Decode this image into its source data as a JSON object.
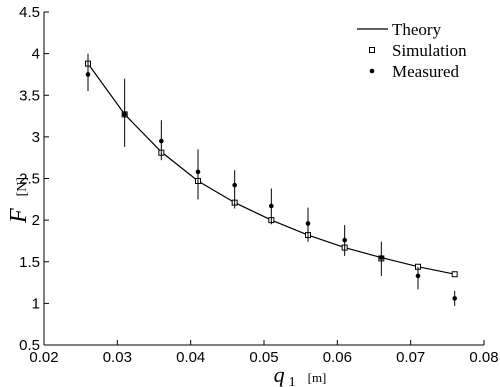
{
  "chart_data": {
    "type": "line",
    "xlim": [
      0.02,
      0.08
    ],
    "ylim": [
      0.5,
      4.5
    ],
    "x_ticks": [
      0.02,
      0.03,
      0.04,
      0.05,
      0.06,
      0.07,
      0.08
    ],
    "x_tick_labels": [
      "0.02",
      "0.03",
      "0.04",
      "0.05",
      "0.06",
      "0.07",
      "0.08"
    ],
    "y_ticks": [
      0.5,
      1,
      1.5,
      2,
      2.5,
      3,
      3.5,
      4,
      4.5
    ],
    "y_tick_labels": [
      "0.5",
      "1",
      "1.5",
      "2",
      "2.5",
      "3",
      "3.5",
      "4",
      "4.5"
    ],
    "xlabel": {
      "var": "q",
      "sub": "1",
      "unit": "[m]"
    },
    "ylabel": {
      "var": "F",
      "unit": "[N]"
    },
    "grid": false,
    "legend_position": "top-right",
    "series": [
      {
        "name": "Theory",
        "style": "line",
        "x": [
          0.026,
          0.031,
          0.036,
          0.041,
          0.046,
          0.051,
          0.056,
          0.061,
          0.066,
          0.071,
          0.076
        ],
        "y": [
          3.88,
          3.27,
          2.82,
          2.47,
          2.21,
          2.0,
          1.82,
          1.67,
          1.55,
          1.44,
          1.35
        ]
      },
      {
        "name": "Simulation",
        "style": "square-marker",
        "x": [
          0.026,
          0.031,
          0.036,
          0.041,
          0.046,
          0.051,
          0.056,
          0.061,
          0.066,
          0.071,
          0.076
        ],
        "y": [
          3.88,
          3.27,
          2.81,
          2.47,
          2.21,
          2.0,
          1.82,
          1.67,
          1.54,
          1.44,
          1.35
        ]
      },
      {
        "name": "Measured",
        "style": "dot-errorbar",
        "x": [
          0.026,
          0.031,
          0.036,
          0.041,
          0.046,
          0.051,
          0.056,
          0.061,
          0.066,
          0.071,
          0.076
        ],
        "y": [
          3.75,
          3.27,
          2.95,
          2.58,
          2.42,
          2.17,
          1.96,
          1.76,
          1.55,
          1.33,
          1.06
        ],
        "err_low": [
          3.55,
          2.88,
          2.72,
          2.25,
          2.14,
          1.95,
          1.74,
          1.57,
          1.33,
          1.17,
          0.97
        ],
        "err_high": [
          4.0,
          3.7,
          3.2,
          2.85,
          2.6,
          2.38,
          2.15,
          1.94,
          1.74,
          1.44,
          1.15
        ]
      }
    ]
  }
}
